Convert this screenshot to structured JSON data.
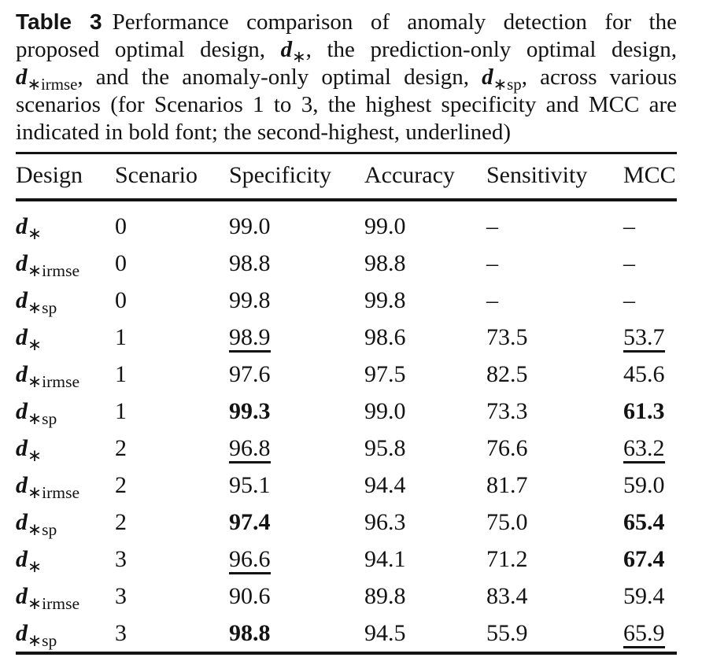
{
  "caption": {
    "label": "Table 3",
    "parts": [
      {
        "type": "text",
        "text": "Performance comparison of anomaly detection for the proposed optimal design, "
      },
      {
        "type": "design",
        "base": "d",
        "sub": "∗"
      },
      {
        "type": "text",
        "text": ", the prediction-only optimal design, "
      },
      {
        "type": "design",
        "base": "d",
        "sub": "∗irmse"
      },
      {
        "type": "text",
        "text": ", and the anomaly-only optimal design, "
      },
      {
        "type": "design",
        "base": "d",
        "sub": "∗sp"
      },
      {
        "type": "text",
        "text": ", across various scenarios (for Scenarios 1 to 3, the highest specificity and MCC are indicated in bold font; the second-highest, underlined)"
      }
    ]
  },
  "table": {
    "columns": [
      "Design",
      "Scenario",
      "Specificity",
      "Accuracy",
      "Sensitivity",
      "MCC"
    ],
    "rows": [
      {
        "design": {
          "base": "d",
          "sub": "∗"
        },
        "cells": [
          {
            "text": "0"
          },
          {
            "text": "99.0"
          },
          {
            "text": "99.0"
          },
          {
            "text": "–"
          },
          {
            "text": "–"
          }
        ]
      },
      {
        "design": {
          "base": "d",
          "sub": "∗irmse"
        },
        "cells": [
          {
            "text": "0"
          },
          {
            "text": "98.8"
          },
          {
            "text": "98.8"
          },
          {
            "text": "–"
          },
          {
            "text": "–"
          }
        ]
      },
      {
        "design": {
          "base": "d",
          "sub": "∗sp"
        },
        "cells": [
          {
            "text": "0"
          },
          {
            "text": "99.8"
          },
          {
            "text": "99.8"
          },
          {
            "text": "–"
          },
          {
            "text": "–"
          }
        ]
      },
      {
        "design": {
          "base": "d",
          "sub": "∗"
        },
        "cells": [
          {
            "text": "1"
          },
          {
            "text": "98.9",
            "style": "underline"
          },
          {
            "text": "98.6"
          },
          {
            "text": "73.5"
          },
          {
            "text": "53.7",
            "style": "underline"
          }
        ]
      },
      {
        "design": {
          "base": "d",
          "sub": "∗irmse"
        },
        "cells": [
          {
            "text": "1"
          },
          {
            "text": "97.6"
          },
          {
            "text": "97.5"
          },
          {
            "text": "82.5"
          },
          {
            "text": "45.6"
          }
        ]
      },
      {
        "design": {
          "base": "d",
          "sub": "∗sp"
        },
        "cells": [
          {
            "text": "1"
          },
          {
            "text": "99.3",
            "style": "bold"
          },
          {
            "text": "99.0"
          },
          {
            "text": "73.3"
          },
          {
            "text": "61.3",
            "style": "bold"
          }
        ]
      },
      {
        "design": {
          "base": "d",
          "sub": "∗"
        },
        "cells": [
          {
            "text": "2"
          },
          {
            "text": "96.8",
            "style": "underline"
          },
          {
            "text": "95.8"
          },
          {
            "text": "76.6"
          },
          {
            "text": "63.2",
            "style": "underline"
          }
        ]
      },
      {
        "design": {
          "base": "d",
          "sub": "∗irmse"
        },
        "cells": [
          {
            "text": "2"
          },
          {
            "text": "95.1"
          },
          {
            "text": "94.4"
          },
          {
            "text": "81.7"
          },
          {
            "text": "59.0"
          }
        ]
      },
      {
        "design": {
          "base": "d",
          "sub": "∗sp"
        },
        "cells": [
          {
            "text": "2"
          },
          {
            "text": "97.4",
            "style": "bold"
          },
          {
            "text": "96.3"
          },
          {
            "text": "75.0"
          },
          {
            "text": "65.4",
            "style": "bold"
          }
        ]
      },
      {
        "design": {
          "base": "d",
          "sub": "∗"
        },
        "cells": [
          {
            "text": "3"
          },
          {
            "text": "96.6",
            "style": "underline"
          },
          {
            "text": "94.1"
          },
          {
            "text": "71.2"
          },
          {
            "text": "67.4",
            "style": "bold"
          }
        ]
      },
      {
        "design": {
          "base": "d",
          "sub": "∗irmse"
        },
        "cells": [
          {
            "text": "3"
          },
          {
            "text": "90.6"
          },
          {
            "text": "89.8"
          },
          {
            "text": "83.4"
          },
          {
            "text": "59.4"
          }
        ]
      },
      {
        "design": {
          "base": "d",
          "sub": "∗sp"
        },
        "cells": [
          {
            "text": "3"
          },
          {
            "text": "98.8",
            "style": "bold"
          },
          {
            "text": "94.5"
          },
          {
            "text": "55.9"
          },
          {
            "text": "65.9",
            "style": "underline"
          }
        ]
      }
    ]
  },
  "colors": {
    "text": "#131313",
    "rule": "#131313",
    "background": "#ffffff"
  }
}
